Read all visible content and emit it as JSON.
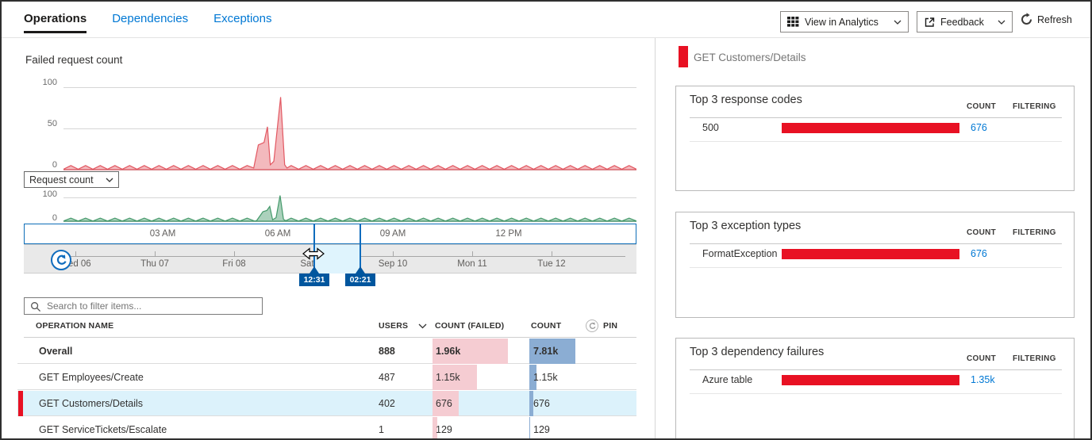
{
  "tabs": {
    "items": [
      {
        "label": "Operations",
        "active": true
      },
      {
        "label": "Dependencies",
        "active": false
      },
      {
        "label": "Exceptions",
        "active": false
      }
    ]
  },
  "toolbar": {
    "view_in_analytics": "View in Analytics",
    "feedback": "Feedback",
    "refresh": "Refresh"
  },
  "left": {
    "chart_title": "Failed request count",
    "metric_selector": "Request count",
    "y_axis_failed": [
      "100",
      "50",
      "0"
    ],
    "y_axis_requests": [
      "100",
      "0"
    ],
    "x_axis": [
      "03 AM",
      "06 AM",
      "09 AM",
      "12 PM"
    ],
    "brush": {
      "days": [
        "Wed 06",
        "Thu 07",
        "Fri 08",
        "Sat 09",
        "Sep 10",
        "Mon 11",
        "Tue 12"
      ],
      "start_time": "12:31",
      "end_time": "02:21"
    },
    "search": {
      "placeholder": "Search to filter items..."
    },
    "table": {
      "headers": {
        "name": "OPERATION NAME",
        "users": "USERS",
        "failed": "COUNT (FAILED)",
        "count": "COUNT",
        "pin": "PIN"
      },
      "rows": [
        {
          "name": "Overall",
          "users": "888",
          "failed": 1960,
          "failed_label": "1.96k",
          "count": 7810,
          "count_label": "7.81k"
        },
        {
          "name": "GET Employees/Create",
          "users": "487",
          "failed": 1150,
          "failed_label": "1.15k",
          "count": 1150,
          "count_label": "1.15k"
        },
        {
          "name": "GET Customers/Details",
          "users": "402",
          "failed": 676,
          "failed_label": "676",
          "count": 676,
          "count_label": "676"
        },
        {
          "name": "GET ServiceTickets/Escalate",
          "users": "1",
          "failed": 129,
          "failed_label": "129",
          "count": 129,
          "count_label": "129"
        }
      ]
    }
  },
  "right": {
    "selected_operation": "GET Customers/Details",
    "cards": [
      {
        "title": "Top 3 response codes",
        "count_header": "COUNT",
        "filtering_header": "FILTERING",
        "rows": [
          {
            "label": "500",
            "count": "676",
            "bar_value": 676,
            "bar_max": 676
          }
        ]
      },
      {
        "title": "Top 3 exception types",
        "count_header": "COUNT",
        "filtering_header": "FILTERING",
        "rows": [
          {
            "label": "FormatException",
            "count": "676",
            "bar_value": 676,
            "bar_max": 676
          }
        ]
      },
      {
        "title": "Top 3 dependency failures",
        "count_header": "COUNT",
        "filtering_header": "FILTERING",
        "rows": [
          {
            "label": "Azure table",
            "count": "1.35k",
            "bar_value": 1350,
            "bar_max": 1350
          }
        ]
      }
    ]
  },
  "colors": {
    "accent_red": "#e81123",
    "link_blue": "#0078d4",
    "selection_blue": "#0f6cbd",
    "failed_series": "#e25862",
    "requests_series": "#44996a"
  },
  "chart_data": [
    {
      "type": "area",
      "title": "Failed request count",
      "ylim": [
        0,
        100
      ],
      "yticks": [
        100,
        50,
        0
      ],
      "xticks": [
        "03 AM",
        "06 AM",
        "09 AM",
        "12 PM"
      ],
      "legend_position": "none",
      "grid": true,
      "series": [
        {
          "name": "Failed request count",
          "color": "#e25862",
          "fill": "rgba(226,88,98,0.42)",
          "baseline_noise": {
            "teeth": 78,
            "amplitude": 5
          },
          "spike": [
            [
              0.332,
              2
            ],
            [
              0.34,
              30
            ],
            [
              0.35,
              33
            ],
            [
              0.356,
              52
            ],
            [
              0.361,
              6
            ],
            [
              0.367,
              10
            ],
            [
              0.379,
              88
            ],
            [
              0.386,
              6
            ],
            [
              0.39,
              2
            ]
          ],
          "description": "flat sawtooth near 0 with failure spike (peaks ~52 and ~88) shortly before 06 AM"
        }
      ]
    },
    {
      "type": "area",
      "title": "Request count",
      "ylim": [
        0,
        100
      ],
      "yticks": [
        100,
        0
      ],
      "xticks": [
        "03 AM",
        "06 AM",
        "09 AM",
        "12 PM"
      ],
      "legend_position": "none",
      "grid": true,
      "series": [
        {
          "name": "Request count",
          "color": "#44996a",
          "fill": "rgba(68,153,106,0.45)",
          "baseline_noise": {
            "teeth": 78,
            "amplitude": 13
          },
          "spike": [
            [
              0.337,
              2
            ],
            [
              0.348,
              40
            ],
            [
              0.355,
              45
            ],
            [
              0.36,
              62
            ],
            [
              0.365,
              6
            ],
            [
              0.371,
              15
            ],
            [
              0.378,
              108
            ],
            [
              0.384,
              8
            ],
            [
              0.388,
              2
            ]
          ],
          "description": "flat sawtooth near 0 with traffic spike (peaks ~62 and ~108) shortly before 06 AM"
        }
      ]
    }
  ]
}
